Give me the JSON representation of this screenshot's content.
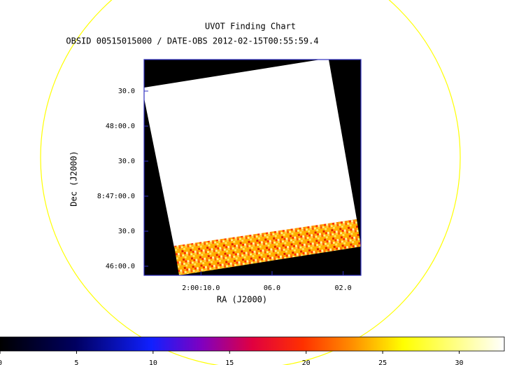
{
  "chart_data": {
    "type": "image",
    "title": "UVOT Finding Chart",
    "subtitle": "OBSID 00515015000 / DATE-OBS 2012-02-15T00:55:59.4",
    "xlabel": "RA (J2000)",
    "ylabel": "Dec (J2000)",
    "xlim": [
      13.2,
      1.0
    ],
    "xticks": [
      {
        "value": 10,
        "label": "2:00:10.0"
      },
      {
        "value": 6,
        "label": "06.0"
      },
      {
        "value": 2,
        "label": "02.0"
      }
    ],
    "ylim": [
      -7.8,
      177
    ],
    "yticks": [
      {
        "value": 0,
        "label": "46:00.0"
      },
      {
        "value": 30,
        "label": "30.0"
      },
      {
        "value": 60,
        "label": "8:47:00.0"
      },
      {
        "value": 90,
        "label": "30.0"
      },
      {
        "value": 120,
        "label": "48:00.0"
      },
      {
        "value": 150,
        "label": "30.0"
      }
    ],
    "colorbar": {
      "lim": [
        0,
        32.9
      ],
      "ticks": [
        0,
        5,
        10,
        15,
        20,
        25,
        30
      ]
    }
  }
}
